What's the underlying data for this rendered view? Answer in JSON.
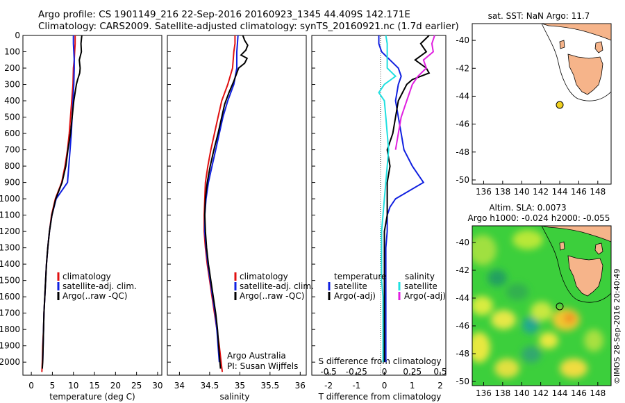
{
  "header": {
    "line1": "Argo profile: CS 1901149_216 22-Sep-2016 20160923_1345 44.409S 142.171E",
    "line2": "Climatology: CARS2009. Satellite-adjusted climatology: synTS_20160921.nc (1.7d earlier)"
  },
  "colors": {
    "climatology": "#e01010",
    "satellite": "#1020e0",
    "argo": "#000000",
    "sat_salinity": "#20e0e0",
    "argo_salinity": "#e020e0",
    "land": "#f6b48a"
  },
  "notes": {
    "argo_australia": "Argo Australia",
    "pi": "PI: Susan Wijffels",
    "imos": "©IMOS 28-Sep-2016 20:40:49"
  },
  "map_panels": {
    "sst": {
      "title": "sat. SST: NaN Argo: 11.7"
    },
    "sla": {
      "title1": "Altim. SLA: 0.0073",
      "title2": "Argo h1000: -0.024 h2000: -0.055"
    },
    "lon_ticks": [
      "136",
      "138",
      "140",
      "142",
      "144",
      "146",
      "148"
    ],
    "sst_lat_ticks": [
      "-40",
      "-42",
      "-44",
      "-46",
      "-48",
      "-50"
    ],
    "sla_lat_ticks": [
      "-40",
      "-42",
      "-44",
      "-46",
      "-48",
      "-50"
    ],
    "float_position": {
      "lon": 142.171,
      "lat": -44.409
    }
  },
  "chart_data": [
    {
      "type": "line",
      "panel": "temperature",
      "xlabel": "temperature (deg C)",
      "xticks": [
        "0",
        "5",
        "10",
        "15",
        "20",
        "25",
        "30"
      ],
      "xlim": [
        -2,
        31
      ],
      "yticks": [
        "0",
        "100",
        "200",
        "300",
        "400",
        "500",
        "600",
        "700",
        "800",
        "900",
        "1000",
        "1100",
        "1200",
        "1300",
        "1400",
        "1500",
        "1600",
        "1700",
        "1800",
        "1900",
        "2000"
      ],
      "ylim": [
        0,
        2080
      ],
      "y_reversed": true,
      "legend": [
        "climatology",
        "satellite-adj. clim.",
        "Argo(..raw -QC)"
      ],
      "series": [
        {
          "name": "climatology",
          "color": "#e01010",
          "points": [
            [
              10.4,
              0
            ],
            [
              10.4,
              50
            ],
            [
              10.3,
              100
            ],
            [
              10.2,
              150
            ],
            [
              10.0,
              200
            ],
            [
              9.9,
              300
            ],
            [
              9.6,
              400
            ],
            [
              9.3,
              500
            ],
            [
              9.0,
              600
            ],
            [
              8.6,
              700
            ],
            [
              8.0,
              800
            ],
            [
              7.2,
              900
            ],
            [
              5.7,
              1000
            ],
            [
              4.8,
              1100
            ],
            [
              4.3,
              1200
            ],
            [
              3.9,
              1300
            ],
            [
              3.6,
              1400
            ],
            [
              3.4,
              1500
            ],
            [
              3.2,
              1600
            ],
            [
              3.0,
              1700
            ],
            [
              2.9,
              1800
            ],
            [
              2.7,
              1900
            ],
            [
              2.6,
              2000
            ],
            [
              2.5,
              2060
            ]
          ]
        },
        {
          "name": "satellite-adj. clim.",
          "color": "#1020e0",
          "points": [
            [
              10.0,
              0
            ],
            [
              10.0,
              50
            ],
            [
              10.1,
              100
            ],
            [
              10.2,
              150
            ],
            [
              10.2,
              200
            ],
            [
              10.1,
              300
            ],
            [
              9.9,
              400
            ],
            [
              9.7,
              500
            ],
            [
              9.5,
              600
            ],
            [
              9.2,
              700
            ],
            [
              8.9,
              800
            ],
            [
              8.6,
              900
            ],
            [
              5.9,
              1000
            ],
            [
              4.9,
              1100
            ],
            [
              4.3,
              1200
            ],
            [
              3.9,
              1300
            ],
            [
              3.6,
              1400
            ],
            [
              3.4,
              1500
            ],
            [
              3.2,
              1600
            ],
            [
              3.0,
              1700
            ],
            [
              2.9,
              1800
            ],
            [
              2.8,
              1900
            ],
            [
              2.7,
              2000
            ]
          ]
        },
        {
          "name": "Argo(..raw -QC)",
          "color": "#000000",
          "points": [
            [
              12.0,
              0
            ],
            [
              11.8,
              50
            ],
            [
              11.9,
              100
            ],
            [
              11.4,
              150
            ],
            [
              11.6,
              200
            ],
            [
              11.5,
              230
            ],
            [
              11.0,
              270
            ],
            [
              10.7,
              300
            ],
            [
              10.1,
              400
            ],
            [
              9.7,
              500
            ],
            [
              9.3,
              600
            ],
            [
              8.7,
              700
            ],
            [
              8.2,
              800
            ],
            [
              7.3,
              900
            ],
            [
              5.8,
              1000
            ],
            [
              4.9,
              1100
            ],
            [
              4.3,
              1200
            ],
            [
              3.9,
              1300
            ],
            [
              3.6,
              1400
            ],
            [
              3.4,
              1500
            ],
            [
              3.2,
              1600
            ],
            [
              3.0,
              1700
            ],
            [
              2.9,
              1800
            ],
            [
              2.8,
              1900
            ],
            [
              2.7,
              2000
            ],
            [
              2.6,
              2040
            ]
          ]
        }
      ]
    },
    {
      "type": "line",
      "panel": "salinity",
      "xlabel": "salinity",
      "xticks": [
        "34",
        "34.5",
        "35",
        "35.5",
        "36"
      ],
      "xlim": [
        33.8,
        36.1
      ],
      "ylim": [
        0,
        2080
      ],
      "y_reversed": true,
      "legend": [
        "climatology",
        "satellite-adj. clim.",
        "Argo(..raw -QC)"
      ],
      "series": [
        {
          "name": "climatology",
          "color": "#e01010",
          "points": [
            [
              34.92,
              0
            ],
            [
              34.92,
              50
            ],
            [
              34.9,
              100
            ],
            [
              34.88,
              200
            ],
            [
              34.8,
              300
            ],
            [
              34.7,
              400
            ],
            [
              34.64,
              500
            ],
            [
              34.58,
              600
            ],
            [
              34.52,
              700
            ],
            [
              34.47,
              800
            ],
            [
              34.43,
              900
            ],
            [
              34.42,
              1000
            ],
            [
              34.41,
              1100
            ],
            [
              34.41,
              1200
            ],
            [
              34.43,
              1300
            ],
            [
              34.46,
              1400
            ],
            [
              34.5,
              1500
            ],
            [
              34.54,
              1600
            ],
            [
              34.58,
              1700
            ],
            [
              34.62,
              1800
            ],
            [
              34.66,
              1900
            ],
            [
              34.69,
              2000
            ],
            [
              34.71,
              2060
            ]
          ]
        },
        {
          "name": "satellite-adj. clim.",
          "color": "#1020e0",
          "points": [
            [
              34.97,
              0
            ],
            [
              34.96,
              50
            ],
            [
              34.95,
              100
            ],
            [
              34.95,
              200
            ],
            [
              34.9,
              300
            ],
            [
              34.8,
              400
            ],
            [
              34.72,
              500
            ],
            [
              34.66,
              600
            ],
            [
              34.6,
              700
            ],
            [
              34.54,
              800
            ],
            [
              34.48,
              900
            ],
            [
              34.44,
              1000
            ],
            [
              34.42,
              1100
            ],
            [
              34.42,
              1200
            ],
            [
              34.44,
              1300
            ],
            [
              34.47,
              1400
            ],
            [
              34.51,
              1500
            ],
            [
              34.55,
              1600
            ],
            [
              34.59,
              1700
            ],
            [
              34.62,
              1800
            ],
            [
              34.64,
              1900
            ],
            [
              34.66,
              2000
            ]
          ]
        },
        {
          "name": "Argo(..raw -QC)",
          "color": "#000000",
          "points": [
            [
              35.05,
              0
            ],
            [
              35.08,
              30
            ],
            [
              35.13,
              60
            ],
            [
              35.1,
              90
            ],
            [
              35.02,
              120
            ],
            [
              35.12,
              140
            ],
            [
              35.08,
              170
            ],
            [
              34.98,
              200
            ],
            [
              34.95,
              230
            ],
            [
              34.9,
              280
            ],
            [
              34.82,
              350
            ],
            [
              34.75,
              420
            ],
            [
              34.7,
              500
            ],
            [
              34.64,
              600
            ],
            [
              34.57,
              700
            ],
            [
              34.51,
              800
            ],
            [
              34.46,
              900
            ],
            [
              34.43,
              1000
            ],
            [
              34.42,
              1100
            ],
            [
              34.43,
              1200
            ],
            [
              34.45,
              1300
            ],
            [
              34.48,
              1400
            ],
            [
              34.52,
              1500
            ],
            [
              34.56,
              1600
            ],
            [
              34.6,
              1700
            ],
            [
              34.63,
              1800
            ],
            [
              34.65,
              1900
            ],
            [
              34.67,
              2000
            ],
            [
              34.68,
              2040
            ]
          ]
        }
      ]
    },
    {
      "type": "line",
      "panel": "difference",
      "xlabel": "T difference from climatology",
      "x2label": "S difference from climatology",
      "xticks": [
        "-2",
        "-1",
        "0",
        "1",
        "2"
      ],
      "xlim": [
        -2.6,
        2.2
      ],
      "x2ticks": [
        "-0.5",
        "-0.25",
        "0",
        "0.25",
        "0.5"
      ],
      "ylim": [
        0,
        2080
      ],
      "y_reversed": true,
      "legend_headers": [
        "temperature",
        "salinity"
      ],
      "legend": [
        "satellite",
        "Argo(-adj)",
        "satellite",
        "Argo(-adj)"
      ],
      "series": [
        {
          "name": "satellite",
          "color": "#1020e0",
          "points": [
            [
              -0.2,
              0
            ],
            [
              -0.2,
              50
            ],
            [
              -0.1,
              100
            ],
            [
              0.2,
              150
            ],
            [
              0.5,
              200
            ],
            [
              0.6,
              250
            ],
            [
              0.5,
              300
            ],
            [
              0.4,
              400
            ],
            [
              0.5,
              500
            ],
            [
              0.6,
              600
            ],
            [
              0.7,
              700
            ],
            [
              1.0,
              800
            ],
            [
              1.4,
              900
            ],
            [
              0.4,
              1000
            ],
            [
              0.2,
              1050
            ],
            [
              0.1,
              1100
            ],
            [
              0.1,
              1200
            ],
            [
              0.05,
              1300
            ],
            [
              0.05,
              1400
            ],
            [
              0.05,
              1500
            ],
            [
              0.05,
              1600
            ],
            [
              0.05,
              1700
            ],
            [
              0.05,
              1800
            ],
            [
              0.05,
              1900
            ],
            [
              0.05,
              2000
            ]
          ]
        },
        {
          "name": "Argo(-adj)",
          "color": "#000000",
          "points": [
            [
              1.6,
              0
            ],
            [
              1.3,
              50
            ],
            [
              1.5,
              100
            ],
            [
              1.1,
              150
            ],
            [
              1.5,
              200
            ],
            [
              1.6,
              230
            ],
            [
              1.0,
              270
            ],
            [
              0.8,
              300
            ],
            [
              0.5,
              400
            ],
            [
              0.4,
              500
            ],
            [
              0.3,
              600
            ],
            [
              0.1,
              700
            ],
            [
              0.2,
              800
            ],
            [
              0.1,
              900
            ],
            [
              0.1,
              1000
            ],
            [
              0.1,
              1100
            ],
            [
              0.0,
              1200
            ],
            [
              0.0,
              1300
            ],
            [
              0.0,
              1400
            ],
            [
              0.0,
              1500
            ],
            [
              0.0,
              1600
            ],
            [
              0.0,
              1700
            ],
            [
              0.0,
              1800
            ],
            [
              0.0,
              1900
            ],
            [
              0.0,
              2000
            ]
          ]
        },
        {
          "name": "satellite",
          "color": "#20e0e0",
          "points": [
            [
              0.05,
              0
            ],
            [
              0.1,
              50
            ],
            [
              0.1,
              100
            ],
            [
              0.1,
              200
            ],
            [
              0.4,
              250
            ],
            [
              0.0,
              300
            ],
            [
              -0.2,
              350
            ],
            [
              0.0,
              400
            ],
            [
              0.05,
              500
            ],
            [
              0.1,
              600
            ],
            [
              0.15,
              700
            ],
            [
              0.1,
              800
            ],
            [
              0.05,
              900
            ],
            [
              0.0,
              1000
            ],
            [
              -0.05,
              1100
            ],
            [
              -0.1,
              1200
            ],
            [
              -0.1,
              1300
            ],
            [
              -0.1,
              1400
            ],
            [
              -0.1,
              1500
            ],
            [
              -0.05,
              1600
            ],
            [
              -0.05,
              1700
            ],
            [
              -0.05,
              1800
            ],
            [
              -0.05,
              1900
            ],
            [
              -0.05,
              2000
            ]
          ]
        },
        {
          "name": "Argo(-adj)",
          "color": "#e020e0",
          "points": [
            [
              1.8,
              0
            ],
            [
              1.7,
              50
            ],
            [
              1.75,
              100
            ],
            [
              1.4,
              150
            ],
            [
              1.5,
              200
            ],
            [
              1.2,
              250
            ],
            [
              1.0,
              300
            ],
            [
              0.8,
              400
            ],
            [
              0.6,
              500
            ],
            [
              0.5,
              600
            ],
            [
              0.4,
              700
            ]
          ]
        }
      ]
    }
  ]
}
